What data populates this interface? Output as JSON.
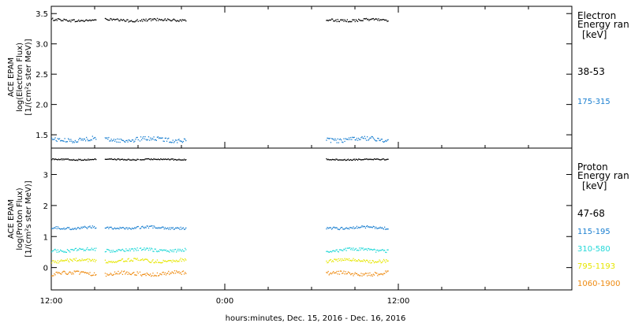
{
  "xlabel": "hours:minutes, Dec. 15, 2016 - Dec. 16, 2016",
  "x_ticks": [
    {
      "hour": 12,
      "label": "12:00"
    },
    {
      "hour": 24,
      "label": "0:00"
    },
    {
      "hour": 36,
      "label": "12:00"
    }
  ],
  "chart_data": [
    {
      "type": "scatter",
      "panel": "electron",
      "ylabel_lines": [
        "ACE EPAM",
        "log(Electron Flux)",
        "[1/(cm²s ster MeV)]"
      ],
      "ylim": [
        1.28,
        3.62
      ],
      "xlim_hours": [
        12,
        48
      ],
      "y_ticks": [
        1.5,
        2.0,
        2.5,
        3.0,
        3.5
      ],
      "y_tick_labels": [
        "1.5",
        "2.0",
        "2.5",
        "3.0",
        "3.5"
      ],
      "legend_title": [
        "Electron",
        "Energy ran",
        "[keV]"
      ],
      "series": [
        {
          "name": "38-53",
          "color": "#000000",
          "value": 3.4,
          "noise": 0.02
        },
        {
          "name": "175-315",
          "color": "#1a7fd0",
          "value": 1.43,
          "noise": 0.035
        }
      ],
      "data_segments_hours": [
        [
          12.0,
          15.1
        ],
        [
          15.7,
          18.0
        ],
        [
          18.1,
          21.3
        ],
        [
          31.0,
          35.3
        ]
      ]
    },
    {
      "type": "scatter",
      "panel": "proton",
      "ylabel_lines": [
        "ACE EPAM",
        "log(Proton Flux)",
        "[1/(cm²s ster MeV)]"
      ],
      "ylim": [
        -0.72,
        3.85
      ],
      "xlim_hours": [
        12,
        48
      ],
      "y_ticks": [
        0,
        1,
        2,
        3
      ],
      "y_tick_labels": [
        "0",
        "1",
        "2",
        "3"
      ],
      "legend_title": [
        "Proton",
        "Energy ran",
        "[keV]"
      ],
      "series": [
        {
          "name": "47-68",
          "color": "#000000",
          "value": 3.5,
          "noise": 0.02
        },
        {
          "name": "115-195",
          "color": "#1a7fd0",
          "value": 1.3,
          "noise": 0.04
        },
        {
          "name": "310-580",
          "color": "#22d8d8",
          "value": 0.58,
          "noise": 0.05
        },
        {
          "name": "795-1193",
          "color": "#e6e600",
          "value": 0.24,
          "noise": 0.05
        },
        {
          "name": "1060-1900",
          "color": "#ee8a10",
          "value": -0.18,
          "noise": 0.06
        }
      ],
      "data_segments_hours": [
        [
          12.0,
          15.1
        ],
        [
          15.7,
          18.0
        ],
        [
          18.1,
          21.3
        ],
        [
          31.0,
          35.3
        ]
      ]
    }
  ]
}
